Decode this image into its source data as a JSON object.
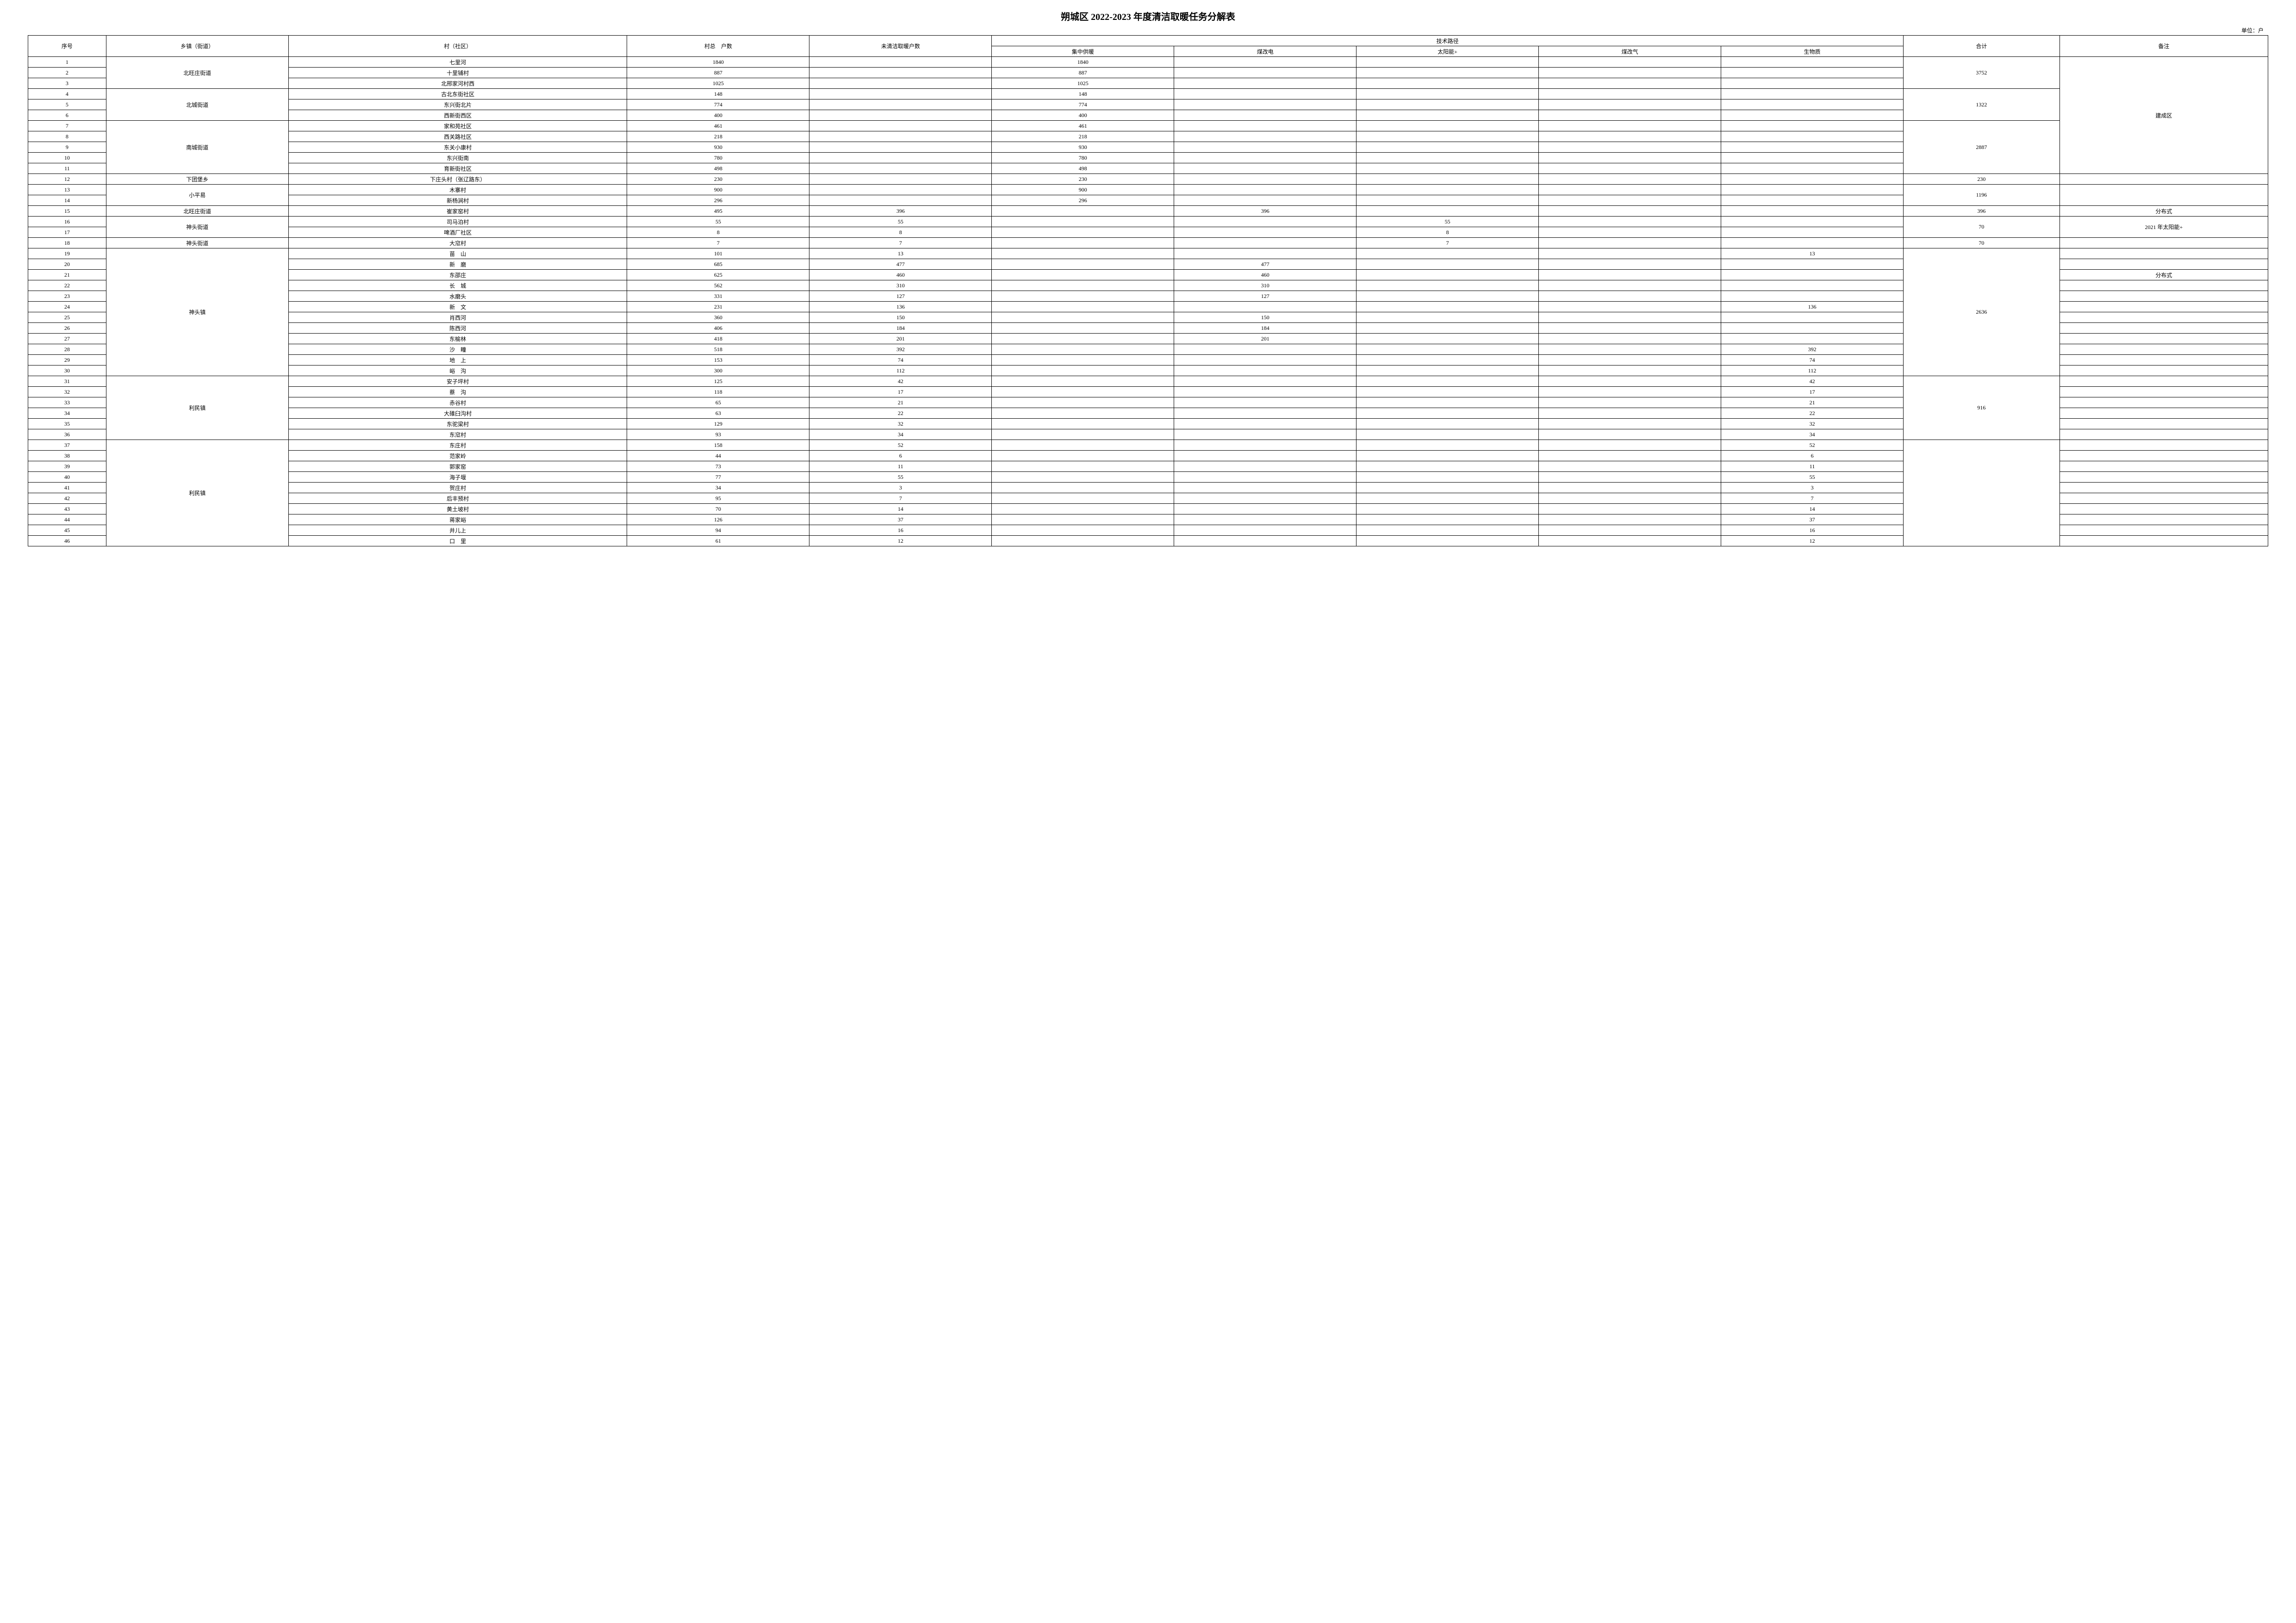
{
  "title": "朔城区 2022-2023 年度清洁取暖任务分解表",
  "unit_label": "单位：户",
  "headers": {
    "seq": "序号",
    "town": "乡镇（街道）",
    "village": "村（社区）",
    "total_households": "村总　户数",
    "unclean_households": "未清洁取暖户数",
    "tech_group": "技术路径",
    "tech_central": "集中供暖",
    "tech_coal_elec": "煤改电",
    "tech_solar": "太阳能+",
    "tech_coal_gas": "煤改气",
    "tech_biomass": "生物质",
    "sum": "合计",
    "remark": "备注"
  },
  "groups": [
    {
      "town": "北旺庄街道",
      "sum": "3752",
      "remark_span": 11,
      "remark": "建成区",
      "rows": [
        {
          "seq": "1",
          "village": "七里河",
          "total": "1840",
          "unclean": "",
          "central": "1840",
          "coal_elec": "",
          "solar": "",
          "coal_gas": "",
          "biomass": ""
        },
        {
          "seq": "2",
          "village": "十里铺村",
          "total": "887",
          "unclean": "",
          "central": "887",
          "coal_elec": "",
          "solar": "",
          "coal_gas": "",
          "biomass": ""
        },
        {
          "seq": "3",
          "village": "北邢家河村西",
          "total": "1025",
          "unclean": "",
          "central": "1025",
          "coal_elec": "",
          "solar": "",
          "coal_gas": "",
          "biomass": ""
        }
      ]
    },
    {
      "town": "北城街道",
      "sum": "1322",
      "rows": [
        {
          "seq": "4",
          "village": "古北东街社区",
          "total": "148",
          "unclean": "",
          "central": "148",
          "coal_elec": "",
          "solar": "",
          "coal_gas": "",
          "biomass": ""
        },
        {
          "seq": "5",
          "village": "东兴街北片",
          "total": "774",
          "unclean": "",
          "central": "774",
          "coal_elec": "",
          "solar": "",
          "coal_gas": "",
          "biomass": ""
        },
        {
          "seq": "6",
          "village": "西新街西区",
          "total": "400",
          "unclean": "",
          "central": "400",
          "coal_elec": "",
          "solar": "",
          "coal_gas": "",
          "biomass": ""
        }
      ]
    },
    {
      "town": "南城街道",
      "sum": "2887",
      "rows": [
        {
          "seq": "7",
          "village": "家和苑社区",
          "total": "461",
          "unclean": "",
          "central": "461",
          "coal_elec": "",
          "solar": "",
          "coal_gas": "",
          "biomass": ""
        },
        {
          "seq": "8",
          "village": "西关路社区",
          "total": "218",
          "unclean": "",
          "central": "218",
          "coal_elec": "",
          "solar": "",
          "coal_gas": "",
          "biomass": ""
        },
        {
          "seq": "9",
          "village": "东关小康村",
          "total": "930",
          "unclean": "",
          "central": "930",
          "coal_elec": "",
          "solar": "",
          "coal_gas": "",
          "biomass": ""
        },
        {
          "seq": "10",
          "village": "东兴街南",
          "total": "780",
          "unclean": "",
          "central": "780",
          "coal_elec": "",
          "solar": "",
          "coal_gas": "",
          "biomass": ""
        },
        {
          "seq": "11",
          "village": "育新街社区",
          "total": "498",
          "unclean": "",
          "central": "498",
          "coal_elec": "",
          "solar": "",
          "coal_gas": "",
          "biomass": ""
        }
      ]
    },
    {
      "town": "下团堡乡",
      "sum": "230",
      "remark": "",
      "rows": [
        {
          "seq": "12",
          "village": "下庄头村（张辽路东）",
          "total": "230",
          "unclean": "",
          "central": "230",
          "coal_elec": "",
          "solar": "",
          "coal_gas": "",
          "biomass": ""
        }
      ]
    },
    {
      "town": "小平易",
      "sum": "1196",
      "remark": "",
      "rows": [
        {
          "seq": "13",
          "village": "木寨村",
          "total": "900",
          "unclean": "",
          "central": "900",
          "coal_elec": "",
          "solar": "",
          "coal_gas": "",
          "biomass": ""
        },
        {
          "seq": "14",
          "village": "新杨涧村",
          "total": "296",
          "unclean": "",
          "central": "296",
          "coal_elec": "",
          "solar": "",
          "coal_gas": "",
          "biomass": ""
        }
      ]
    },
    {
      "town": "北旺庄街道",
      "sum": "396",
      "remark": "分布式",
      "rows": [
        {
          "seq": "15",
          "village": "崔家窑村",
          "total": "495",
          "unclean": "396",
          "central": "",
          "coal_elec": "396",
          "solar": "",
          "coal_gas": "",
          "biomass": ""
        }
      ]
    },
    {
      "town": "神头街道",
      "sum": "70",
      "remark": "2021 年太阳能+",
      "remark_span": 2,
      "rows": [
        {
          "seq": "16",
          "village": "司马泊村",
          "total": "55",
          "unclean": "55",
          "central": "",
          "coal_elec": "",
          "solar": "55",
          "coal_gas": "",
          "biomass": ""
        },
        {
          "seq": "17",
          "village": "啤酒厂社区",
          "total": "8",
          "unclean": "8",
          "central": "",
          "coal_elec": "",
          "solar": "8",
          "coal_gas": "",
          "biomass": ""
        }
      ]
    },
    {
      "town": "神头街道",
      "sum": "70",
      "remark": "",
      "rows": [
        {
          "seq": "18",
          "village": "大窊村",
          "total": "7",
          "unclean": "7",
          "central": "",
          "coal_elec": "",
          "solar": "7",
          "coal_gas": "",
          "biomass": ""
        }
      ]
    },
    {
      "town": "神头镇",
      "sum": "2636",
      "rows": [
        {
          "seq": "19",
          "village": "苗　山",
          "total": "101",
          "unclean": "13",
          "central": "",
          "coal_elec": "",
          "solar": "",
          "coal_gas": "",
          "biomass": "13",
          "remark": ""
        },
        {
          "seq": "20",
          "village": "新　磨",
          "total": "685",
          "unclean": "477",
          "central": "",
          "coal_elec": "477",
          "solar": "",
          "coal_gas": "",
          "biomass": "",
          "remark": ""
        },
        {
          "seq": "21",
          "village": "东邵庄",
          "total": "625",
          "unclean": "460",
          "central": "",
          "coal_elec": "460",
          "solar": "",
          "coal_gas": "",
          "biomass": "",
          "remark": "分布式"
        },
        {
          "seq": "22",
          "village": "长　城",
          "total": "562",
          "unclean": "310",
          "central": "",
          "coal_elec": "310",
          "solar": "",
          "coal_gas": "",
          "biomass": "",
          "remark": ""
        },
        {
          "seq": "23",
          "village": "水磨头",
          "total": "331",
          "unclean": "127",
          "central": "",
          "coal_elec": "127",
          "solar": "",
          "coal_gas": "",
          "biomass": "",
          "remark": ""
        },
        {
          "seq": "24",
          "village": "新　文",
          "total": "231",
          "unclean": "136",
          "central": "",
          "coal_elec": "",
          "solar": "",
          "coal_gas": "",
          "biomass": "136",
          "remark": ""
        },
        {
          "seq": "25",
          "village": "肖西河",
          "total": "360",
          "unclean": "150",
          "central": "",
          "coal_elec": "150",
          "solar": "",
          "coal_gas": "",
          "biomass": "",
          "remark": ""
        },
        {
          "seq": "26",
          "village": "陈西河",
          "total": "406",
          "unclean": "184",
          "central": "",
          "coal_elec": "184",
          "solar": "",
          "coal_gas": "",
          "biomass": "",
          "remark": ""
        },
        {
          "seq": "27",
          "village": "东榆林",
          "total": "418",
          "unclean": "201",
          "central": "",
          "coal_elec": "201",
          "solar": "",
          "coal_gas": "",
          "biomass": "",
          "remark": ""
        },
        {
          "seq": "28",
          "village": "沙　疃",
          "total": "518",
          "unclean": "392",
          "central": "",
          "coal_elec": "",
          "solar": "",
          "coal_gas": "",
          "biomass": "392",
          "remark": ""
        },
        {
          "seq": "29",
          "village": "地　上",
          "total": "153",
          "unclean": "74",
          "central": "",
          "coal_elec": "",
          "solar": "",
          "coal_gas": "",
          "biomass": "74",
          "remark": ""
        },
        {
          "seq": "30",
          "village": "峪　沟",
          "total": "300",
          "unclean": "112",
          "central": "",
          "coal_elec": "",
          "solar": "",
          "coal_gas": "",
          "biomass": "112",
          "remark": ""
        }
      ]
    },
    {
      "town": "利民镇",
      "sum": "916",
      "rows": [
        {
          "seq": "31",
          "village": "安子坪村",
          "total": "125",
          "unclean": "42",
          "central": "",
          "coal_elec": "",
          "solar": "",
          "coal_gas": "",
          "biomass": "42",
          "remark": ""
        },
        {
          "seq": "32",
          "village": "蔡　沟",
          "total": "118",
          "unclean": "17",
          "central": "",
          "coal_elec": "",
          "solar": "",
          "coal_gas": "",
          "biomass": "17",
          "remark": ""
        },
        {
          "seq": "33",
          "village": "赤谷村",
          "total": "65",
          "unclean": "21",
          "central": "",
          "coal_elec": "",
          "solar": "",
          "coal_gas": "",
          "biomass": "21",
          "remark": ""
        },
        {
          "seq": "34",
          "village": "大碓臼沟村",
          "total": "63",
          "unclean": "22",
          "central": "",
          "coal_elec": "",
          "solar": "",
          "coal_gas": "",
          "biomass": "22",
          "remark": ""
        },
        {
          "seq": "35",
          "village": "东驼梁村",
          "total": "129",
          "unclean": "32",
          "central": "",
          "coal_elec": "",
          "solar": "",
          "coal_gas": "",
          "biomass": "32",
          "remark": ""
        },
        {
          "seq": "36",
          "village": "东窊村",
          "total": "93",
          "unclean": "34",
          "central": "",
          "coal_elec": "",
          "solar": "",
          "coal_gas": "",
          "biomass": "34",
          "remark": ""
        }
      ]
    },
    {
      "town": "利民镇",
      "sum": "",
      "rows": [
        {
          "seq": "37",
          "village": "东庄村",
          "total": "158",
          "unclean": "52",
          "central": "",
          "coal_elec": "",
          "solar": "",
          "coal_gas": "",
          "biomass": "52",
          "remark": ""
        },
        {
          "seq": "38",
          "village": "范家岭",
          "total": "44",
          "unclean": "6",
          "central": "",
          "coal_elec": "",
          "solar": "",
          "coal_gas": "",
          "biomass": "6",
          "remark": ""
        },
        {
          "seq": "39",
          "village": "郭家窑",
          "total": "73",
          "unclean": "11",
          "central": "",
          "coal_elec": "",
          "solar": "",
          "coal_gas": "",
          "biomass": "11",
          "remark": ""
        },
        {
          "seq": "40",
          "village": "海子堰",
          "total": "77",
          "unclean": "55",
          "central": "",
          "coal_elec": "",
          "solar": "",
          "coal_gas": "",
          "biomass": "55",
          "remark": ""
        },
        {
          "seq": "41",
          "village": "贺庄村",
          "total": "34",
          "unclean": "3",
          "central": "",
          "coal_elec": "",
          "solar": "",
          "coal_gas": "",
          "biomass": "3",
          "remark": ""
        },
        {
          "seq": "42",
          "village": "后丰预村",
          "total": "95",
          "unclean": "7",
          "central": "",
          "coal_elec": "",
          "solar": "",
          "coal_gas": "",
          "biomass": "7",
          "remark": ""
        },
        {
          "seq": "43",
          "village": "黄土坡村",
          "total": "70",
          "unclean": "14",
          "central": "",
          "coal_elec": "",
          "solar": "",
          "coal_gas": "",
          "biomass": "14",
          "remark": ""
        },
        {
          "seq": "44",
          "village": "蒋家峪",
          "total": "126",
          "unclean": "37",
          "central": "",
          "coal_elec": "",
          "solar": "",
          "coal_gas": "",
          "biomass": "37",
          "remark": ""
        },
        {
          "seq": "45",
          "village": "井儿上",
          "total": "94",
          "unclean": "16",
          "central": "",
          "coal_elec": "",
          "solar": "",
          "coal_gas": "",
          "biomass": "16",
          "remark": ""
        },
        {
          "seq": "46",
          "village": "口　里",
          "total": "61",
          "unclean": "12",
          "central": "",
          "coal_elec": "",
          "solar": "",
          "coal_gas": "",
          "biomass": "12",
          "remark": ""
        }
      ]
    }
  ]
}
